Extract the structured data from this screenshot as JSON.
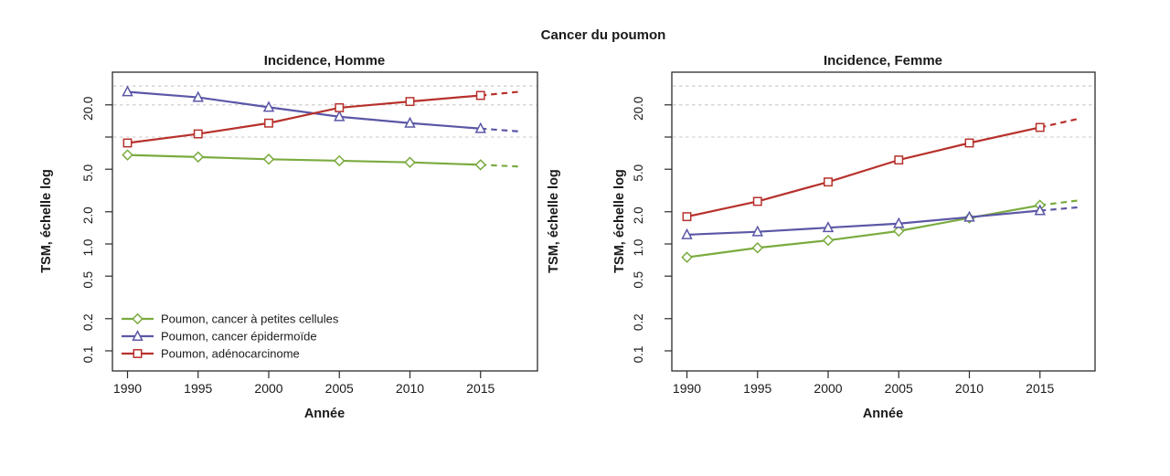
{
  "figure": {
    "title": "Cancer du poumon",
    "background": "#ffffff",
    "text_color": "#1a1a1a",
    "axis_color": "#2b2b2b",
    "gridline_color": "#c9c9c9"
  },
  "chart_data": [
    {
      "type": "line",
      "title": "Incidence, Homme",
      "xlabel": "Année",
      "ylabel": "TSM, échelle log",
      "yscale": "log",
      "ylim": [
        0.065,
        40
      ],
      "x": [
        1990,
        1995,
        2000,
        2005,
        2010,
        2015
      ],
      "xtick_labels": [
        "1990",
        "1995",
        "2000",
        "2005",
        "2010",
        "2015"
      ],
      "yticks": [
        0.1,
        0.2,
        0.5,
        1.0,
        2.0,
        5.0,
        10,
        20
      ],
      "ytick_labels": [
        "0.1",
        "0.2",
        "0.5",
        "1.0",
        "2.0",
        "5.0",
        "",
        "20.0"
      ],
      "gridlines": [
        10,
        20,
        30
      ],
      "grid_style": "dotted",
      "projection_year": 2018,
      "legend_position": "bottom-left-inside",
      "series": [
        {
          "id": "petites-cellules",
          "name": "Poumon, cancer à petites cellules",
          "color": "#7aab3f",
          "marker": "diamond",
          "values": [
            6.8,
            6.5,
            6.2,
            6.0,
            5.8,
            5.5
          ],
          "projection": 5.3
        },
        {
          "id": "epidermoide",
          "name": "Poumon, cancer épidermoïde",
          "color": "#5b57a6",
          "marker": "triangle",
          "values": [
            26.5,
            23.5,
            19.0,
            15.5,
            13.5,
            12.0
          ],
          "projection": 11.3
        },
        {
          "id": "adenocarcinome",
          "name": "Poumon, adénocarcinome",
          "color": "#b7312c",
          "marker": "square",
          "values": [
            8.8,
            10.7,
            13.5,
            18.8,
            21.5,
            24.5
          ],
          "projection": 26.5
        }
      ]
    },
    {
      "type": "line",
      "title": "Incidence, Femme",
      "xlabel": "Année",
      "ylabel": "TSM, échelle log",
      "yscale": "log",
      "ylim": [
        0.065,
        40
      ],
      "x": [
        1990,
        1995,
        2000,
        2005,
        2010,
        2015
      ],
      "xtick_labels": [
        "1990",
        "1995",
        "2000",
        "2005",
        "2010",
        "2015"
      ],
      "yticks": [
        0.1,
        0.2,
        0.5,
        1.0,
        2.0,
        5.0,
        10,
        20
      ],
      "ytick_labels": [
        "0.1",
        "0.2",
        "0.5",
        "1.0",
        "2.0",
        "5.0",
        "",
        "20.0"
      ],
      "gridlines": [
        10,
        20,
        30
      ],
      "grid_style": "dotted",
      "projection_year": 2018,
      "legend_position": "none",
      "series": [
        {
          "id": "petites-cellules",
          "name": "Poumon, cancer à petites cellules",
          "color": "#7aab3f",
          "marker": "diamond",
          "values": [
            0.75,
            0.92,
            1.08,
            1.32,
            1.75,
            2.3
          ],
          "projection": 2.55
        },
        {
          "id": "epidermoide",
          "name": "Poumon, cancer épidermoïde",
          "color": "#5b57a6",
          "marker": "triangle",
          "values": [
            1.22,
            1.3,
            1.42,
            1.55,
            1.78,
            2.05
          ],
          "projection": 2.2
        },
        {
          "id": "adenocarcinome",
          "name": "Poumon, adénocarcinome",
          "color": "#b7312c",
          "marker": "square",
          "values": [
            1.8,
            2.5,
            3.8,
            6.1,
            8.8,
            12.3
          ],
          "projection": 14.8
        }
      ]
    }
  ]
}
